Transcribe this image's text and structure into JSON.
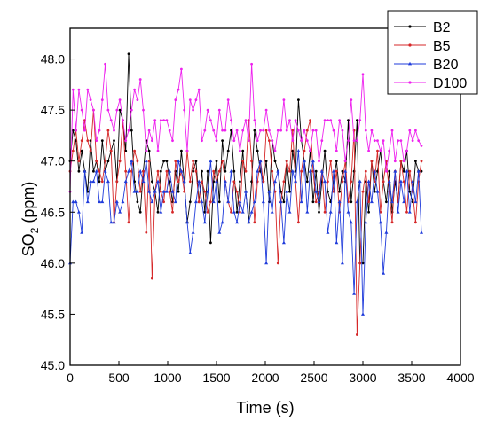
{
  "chart_data": {
    "type": "line",
    "title": "",
    "xlabel": "Time (s)",
    "ylabel_main": "SO",
    "ylabel_sub": "2",
    "ylabel_rest": " (ppm)",
    "xlim": [
      0,
      4000
    ],
    "ylim": [
      45.0,
      48.3
    ],
    "xticks": [
      "0",
      "500",
      "1000",
      "1500",
      "2000",
      "2500",
      "3000",
      "3500",
      "4000"
    ],
    "yticks": [
      "45.0",
      "45.5",
      "46.0",
      "46.5",
      "47.0",
      "47.5",
      "48.0"
    ],
    "legend_position": "top-right",
    "series": [
      {
        "name": "B2",
        "color": "#000000",
        "values": [
          47.0,
          47.3,
          47.2,
          46.9,
          47.1,
          46.9,
          46.7,
          47.2,
          46.9,
          47.0,
          46.8,
          47.2,
          46.9,
          47.0,
          47.1,
          47.2,
          46.8,
          47.5,
          47.4,
          47.1,
          48.05,
          47.3,
          46.8,
          46.6,
          46.5,
          46.9,
          47.2,
          47.1,
          46.8,
          46.7,
          46.5,
          46.9,
          47.0,
          47.0,
          46.8,
          46.6,
          46.9,
          46.7,
          47.1,
          46.8,
          46.4,
          46.6,
          46.9,
          47.0,
          46.6,
          46.9,
          46.5,
          46.9,
          46.2,
          46.8,
          47.0,
          46.6,
          47.2,
          46.9,
          47.1,
          47.3,
          46.9,
          46.5,
          46.8,
          47.1,
          46.7,
          46.4,
          46.8,
          47.3,
          47.1,
          46.9,
          46.8,
          47.0,
          46.6,
          47.2,
          47.0,
          46.9,
          46.7,
          46.6,
          47.0,
          46.7,
          47.1,
          46.9,
          47.6,
          47.2,
          47.0,
          46.8,
          47.1,
          46.6,
          46.9,
          46.5,
          46.8,
          47.1,
          46.7,
          46.6,
          46.8,
          47.0,
          46.7,
          46.9,
          46.8,
          47.4,
          46.6,
          46.9,
          47.4,
          46.0,
          46.0,
          46.8,
          46.5,
          47.0,
          46.7,
          46.9,
          47.1,
          46.8,
          46.6,
          46.9,
          46.5,
          46.8,
          46.6,
          47.0,
          46.9,
          47.1,
          46.7,
          46.6,
          47.0,
          46.9,
          46.9
        ]
      },
      {
        "name": "B5",
        "color": "#d62728",
        "values": [
          46.9,
          47.1,
          47.3,
          47.0,
          47.2,
          47.4,
          47.2,
          47.1,
          47.5,
          47.0,
          46.9,
          46.8,
          47.0,
          47.3,
          47.1,
          46.4,
          46.8,
          47.0,
          47.4,
          46.9,
          46.4,
          46.9,
          47.1,
          47.0,
          46.7,
          46.9,
          46.3,
          47.0,
          45.85,
          46.7,
          46.9,
          46.7,
          46.6,
          46.9,
          46.7,
          46.5,
          47.0,
          46.8,
          46.9,
          46.7,
          47.1,
          46.8,
          47.0,
          46.9,
          46.6,
          46.8,
          46.7,
          46.5,
          46.6,
          46.9,
          46.8,
          46.9,
          47.0,
          46.8,
          46.6,
          46.5,
          46.8,
          46.7,
          46.5,
          47.0,
          46.9,
          47.4,
          47.0,
          46.4,
          46.8,
          47.0,
          46.8,
          47.3,
          47.2,
          46.9,
          46.7,
          46.0,
          46.6,
          46.8,
          47.0,
          46.9,
          47.3,
          46.8,
          46.4,
          46.9,
          47.1,
          47.3,
          47.4,
          46.9,
          46.6,
          46.7,
          46.9,
          46.5,
          46.8,
          47.0,
          46.7,
          46.9,
          46.5,
          46.8,
          47.0,
          46.6,
          46.8,
          47.3,
          45.3,
          46.0,
          46.7,
          46.9,
          46.6,
          47.0,
          46.8,
          47.1,
          46.5,
          46.8,
          47.0,
          46.7,
          46.4,
          46.9,
          46.6,
          47.0,
          46.8,
          46.5,
          46.9,
          46.7,
          46.4,
          46.8,
          47.0
        ]
      },
      {
        "name": "B20",
        "color": "#1f3bdb",
        "values": [
          46.0,
          46.6,
          46.6,
          46.5,
          46.3,
          46.9,
          46.6,
          46.8,
          46.8,
          46.9,
          46.6,
          46.6,
          46.9,
          46.8,
          46.4,
          46.4,
          46.6,
          46.5,
          46.6,
          46.8,
          46.9,
          47.0,
          46.7,
          46.7,
          46.9,
          46.8,
          47.0,
          46.7,
          46.6,
          46.7,
          46.8,
          46.5,
          46.7,
          46.7,
          46.9,
          46.7,
          46.6,
          47.0,
          46.9,
          46.8,
          46.4,
          46.1,
          46.3,
          46.6,
          46.8,
          46.6,
          46.4,
          46.7,
          47.0,
          46.6,
          46.8,
          46.3,
          46.4,
          46.8,
          46.6,
          46.9,
          46.5,
          46.4,
          46.6,
          46.5,
          46.7,
          46.4,
          46.5,
          46.6,
          46.9,
          47.0,
          46.6,
          46.0,
          46.7,
          46.5,
          46.8,
          46.9,
          46.6,
          46.2,
          46.7,
          46.5,
          46.9,
          46.8,
          47.1,
          46.6,
          47.0,
          46.5,
          46.9,
          47.0,
          46.7,
          46.6,
          46.9,
          46.8,
          46.3,
          46.5,
          46.9,
          46.2,
          46.6,
          46.0,
          46.9,
          46.5,
          46.4,
          45.7,
          46.6,
          46.8,
          45.5,
          46.4,
          46.8,
          46.6,
          46.9,
          46.7,
          46.4,
          45.9,
          46.3,
          46.8,
          46.6,
          46.9,
          46.5,
          46.8,
          46.6,
          46.9,
          46.5,
          46.8,
          46.6,
          46.9,
          46.3
        ]
      },
      {
        "name": "D100",
        "color": "#ee22ee",
        "values": [
          46.7,
          47.7,
          47.3,
          47.7,
          47.5,
          47.3,
          47.7,
          47.6,
          47.5,
          47.2,
          47.3,
          47.6,
          47.95,
          47.5,
          47.4,
          47.3,
          47.5,
          47.6,
          47.4,
          47.2,
          47.3,
          47.5,
          47.7,
          47.6,
          47.8,
          47.5,
          47.1,
          47.3,
          47.2,
          47.4,
          47.1,
          47.4,
          47.4,
          47.4,
          47.3,
          47.2,
          47.6,
          47.7,
          47.9,
          47.5,
          47.1,
          47.6,
          47.5,
          47.6,
          47.7,
          47.2,
          47.3,
          47.5,
          47.4,
          47.3,
          47.2,
          47.5,
          47.3,
          47.3,
          47.6,
          47.4,
          47.2,
          47.3,
          47.1,
          47.3,
          47.4,
          47.2,
          47.95,
          47.4,
          47.2,
          47.3,
          47.3,
          47.5,
          47.3,
          47.2,
          47.1,
          47.3,
          47.3,
          47.6,
          47.3,
          47.4,
          47.2,
          47.4,
          47.3,
          47.2,
          47.3,
          47.2,
          47.1,
          47.3,
          47.3,
          47.0,
          47.2,
          47.4,
          47.4,
          47.4,
          47.3,
          47.1,
          47.4,
          47.3,
          47.0,
          47.2,
          47.6,
          47.2,
          47.2,
          47.4,
          47.85,
          47.3,
          47.1,
          47.3,
          47.2,
          47.2,
          47.1,
          47.2,
          46.9,
          47.1,
          47.3,
          47.0,
          47.2,
          47.2,
          47.0,
          47.1,
          47.3,
          47.2,
          47.3,
          47.2,
          47.15
        ]
      }
    ]
  }
}
